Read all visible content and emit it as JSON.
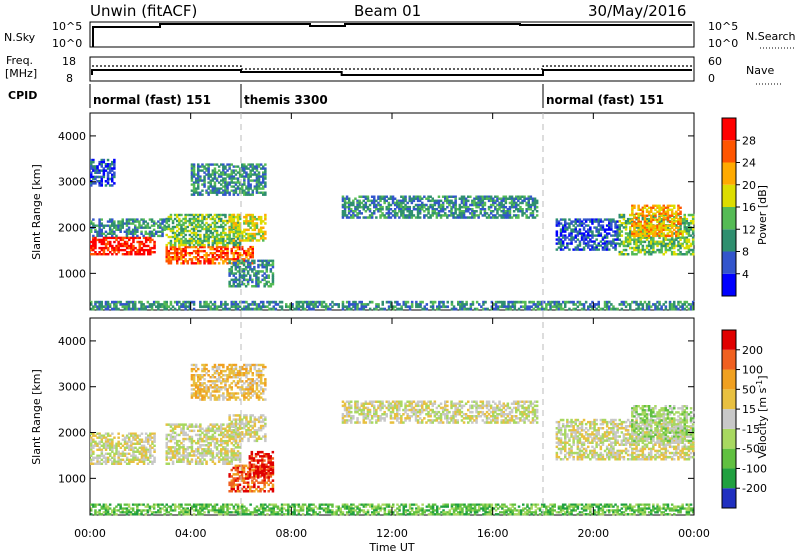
{
  "header": {
    "radar": "Unwin (fitACF)",
    "beam": "Beam 01",
    "date": "30/May/2016"
  },
  "sky_panel": {
    "label": "N.Sky",
    "right_label": "N.Search",
    "left_ticks": [
      "10^5",
      "10^0"
    ],
    "right_ticks": [
      "10^5",
      "10^0"
    ]
  },
  "freq_panel": {
    "label_line1": "Freq.",
    "label_line2": "[MHz]",
    "right_label": "Nave",
    "left_ticks": [
      "18",
      "8"
    ],
    "right_ticks": [
      "60",
      "0"
    ]
  },
  "cpid": {
    "label": "CPID",
    "segments": [
      {
        "start_h": 0,
        "end_h": 6,
        "name": "normal (fast) 151"
      },
      {
        "start_h": 6,
        "end_h": 18,
        "name": "themis 3300"
      },
      {
        "start_h": 18,
        "end_h": 24,
        "name": "normal (fast) 151"
      }
    ]
  },
  "colors": {
    "power": [
      "#0000ff",
      "#3355cc",
      "#2f8f6f",
      "#55bb55",
      "#dddd00",
      "#ffaa00",
      "#ff5500",
      "#ff0000"
    ],
    "velocity": [
      "#2030c0",
      "#20a040",
      "#60c040",
      "#a8d860",
      "#c8c8c8",
      "#e8c040",
      "#f0a020",
      "#f06020",
      "#e00000"
    ]
  },
  "chart_data": [
    {
      "type": "heatmap",
      "name": "power",
      "xlabel": "",
      "ylabel": "Slant Range [km]",
      "xlim": [
        0,
        24
      ],
      "ylim": [
        200,
        4500
      ],
      "x_ticks": [
        0,
        4,
        8,
        12,
        16,
        20,
        24
      ],
      "y_ticks": [
        1000,
        2000,
        3000,
        4000
      ],
      "y_tick_labels": [
        "1000",
        "2000",
        "3000",
        "4000"
      ],
      "colorbar_label": "Power [dB]",
      "colorbar_ticks": [
        "28",
        "24",
        "20",
        "16",
        "12",
        "8",
        "4"
      ],
      "regions": [
        {
          "t0": 0.0,
          "t1": 2.6,
          "r0": 1400,
          "r1": 1800,
          "level": 7
        },
        {
          "t0": 0.0,
          "t1": 3.0,
          "r0": 1800,
          "r1": 2200,
          "level": 2
        },
        {
          "t0": 0.0,
          "t1": 1.0,
          "r0": 2900,
          "r1": 3500,
          "level": 1
        },
        {
          "t0": 3.0,
          "t1": 6.5,
          "r0": 1200,
          "r1": 1600,
          "level": 6
        },
        {
          "t0": 3.0,
          "t1": 6.0,
          "r0": 1600,
          "r1": 2300,
          "level": 3
        },
        {
          "t0": 5.5,
          "t1": 7.0,
          "r0": 1700,
          "r1": 2300,
          "level": 4
        },
        {
          "t0": 4.0,
          "t1": 7.0,
          "r0": 2700,
          "r1": 3400,
          "level": 2
        },
        {
          "t0": 5.5,
          "t1": 7.3,
          "r0": 700,
          "r1": 1300,
          "level": 2
        },
        {
          "t0": 10.0,
          "t1": 17.8,
          "r0": 2200,
          "r1": 2700,
          "level": 2
        },
        {
          "t0": 18.5,
          "t1": 21.0,
          "r0": 1500,
          "r1": 2200,
          "level": 1
        },
        {
          "t0": 21.0,
          "t1": 24.0,
          "r0": 1400,
          "r1": 2300,
          "level": 3
        },
        {
          "t0": 21.5,
          "t1": 23.5,
          "r0": 1800,
          "r1": 2500,
          "level": 5
        },
        {
          "t0": 0.0,
          "t1": 24.0,
          "r0": 200,
          "r1": 400,
          "level": 2
        }
      ]
    },
    {
      "type": "heatmap",
      "name": "velocity",
      "xlabel": "Time UT",
      "ylabel": "Slant Range [km]",
      "xlim": [
        0,
        24
      ],
      "ylim": [
        200,
        4500
      ],
      "x_ticks": [
        0,
        4,
        8,
        12,
        16,
        20,
        24
      ],
      "x_tick_labels": [
        "00:00",
        "04:00",
        "08:00",
        "12:00",
        "16:00",
        "20:00",
        "00:00"
      ],
      "y_ticks": [
        1000,
        2000,
        3000,
        4000
      ],
      "y_tick_labels": [
        "1000",
        "2000",
        "3000",
        "4000"
      ],
      "colorbar_label": "Velocity [m s^-1]",
      "colorbar_ticks": [
        "200",
        "100",
        "50",
        "15",
        "-15",
        "-50",
        "-100",
        "-200"
      ],
      "regions": [
        {
          "t0": 0.0,
          "t1": 2.6,
          "r0": 1300,
          "r1": 2000,
          "level": 4
        },
        {
          "t0": 3.0,
          "t1": 6.0,
          "r0": 1300,
          "r1": 2200,
          "level": 4
        },
        {
          "t0": 5.5,
          "t1": 7.0,
          "r0": 1800,
          "r1": 2400,
          "level": 4
        },
        {
          "t0": 4.0,
          "t1": 7.0,
          "r0": 2700,
          "r1": 3500,
          "level": 5
        },
        {
          "t0": 5.5,
          "t1": 7.3,
          "r0": 700,
          "r1": 1300,
          "level": 7
        },
        {
          "t0": 6.3,
          "t1": 7.3,
          "r0": 1000,
          "r1": 1600,
          "level": 8
        },
        {
          "t0": 10.0,
          "t1": 17.8,
          "r0": 2200,
          "r1": 2700,
          "level": 4
        },
        {
          "t0": 18.5,
          "t1": 24.0,
          "r0": 1400,
          "r1": 2300,
          "level": 4
        },
        {
          "t0": 21.5,
          "t1": 24.0,
          "r0": 1800,
          "r1": 2600,
          "level": 3
        },
        {
          "t0": 0.0,
          "t1": 24.0,
          "r0": 200,
          "r1": 450,
          "level": 2
        }
      ]
    }
  ]
}
